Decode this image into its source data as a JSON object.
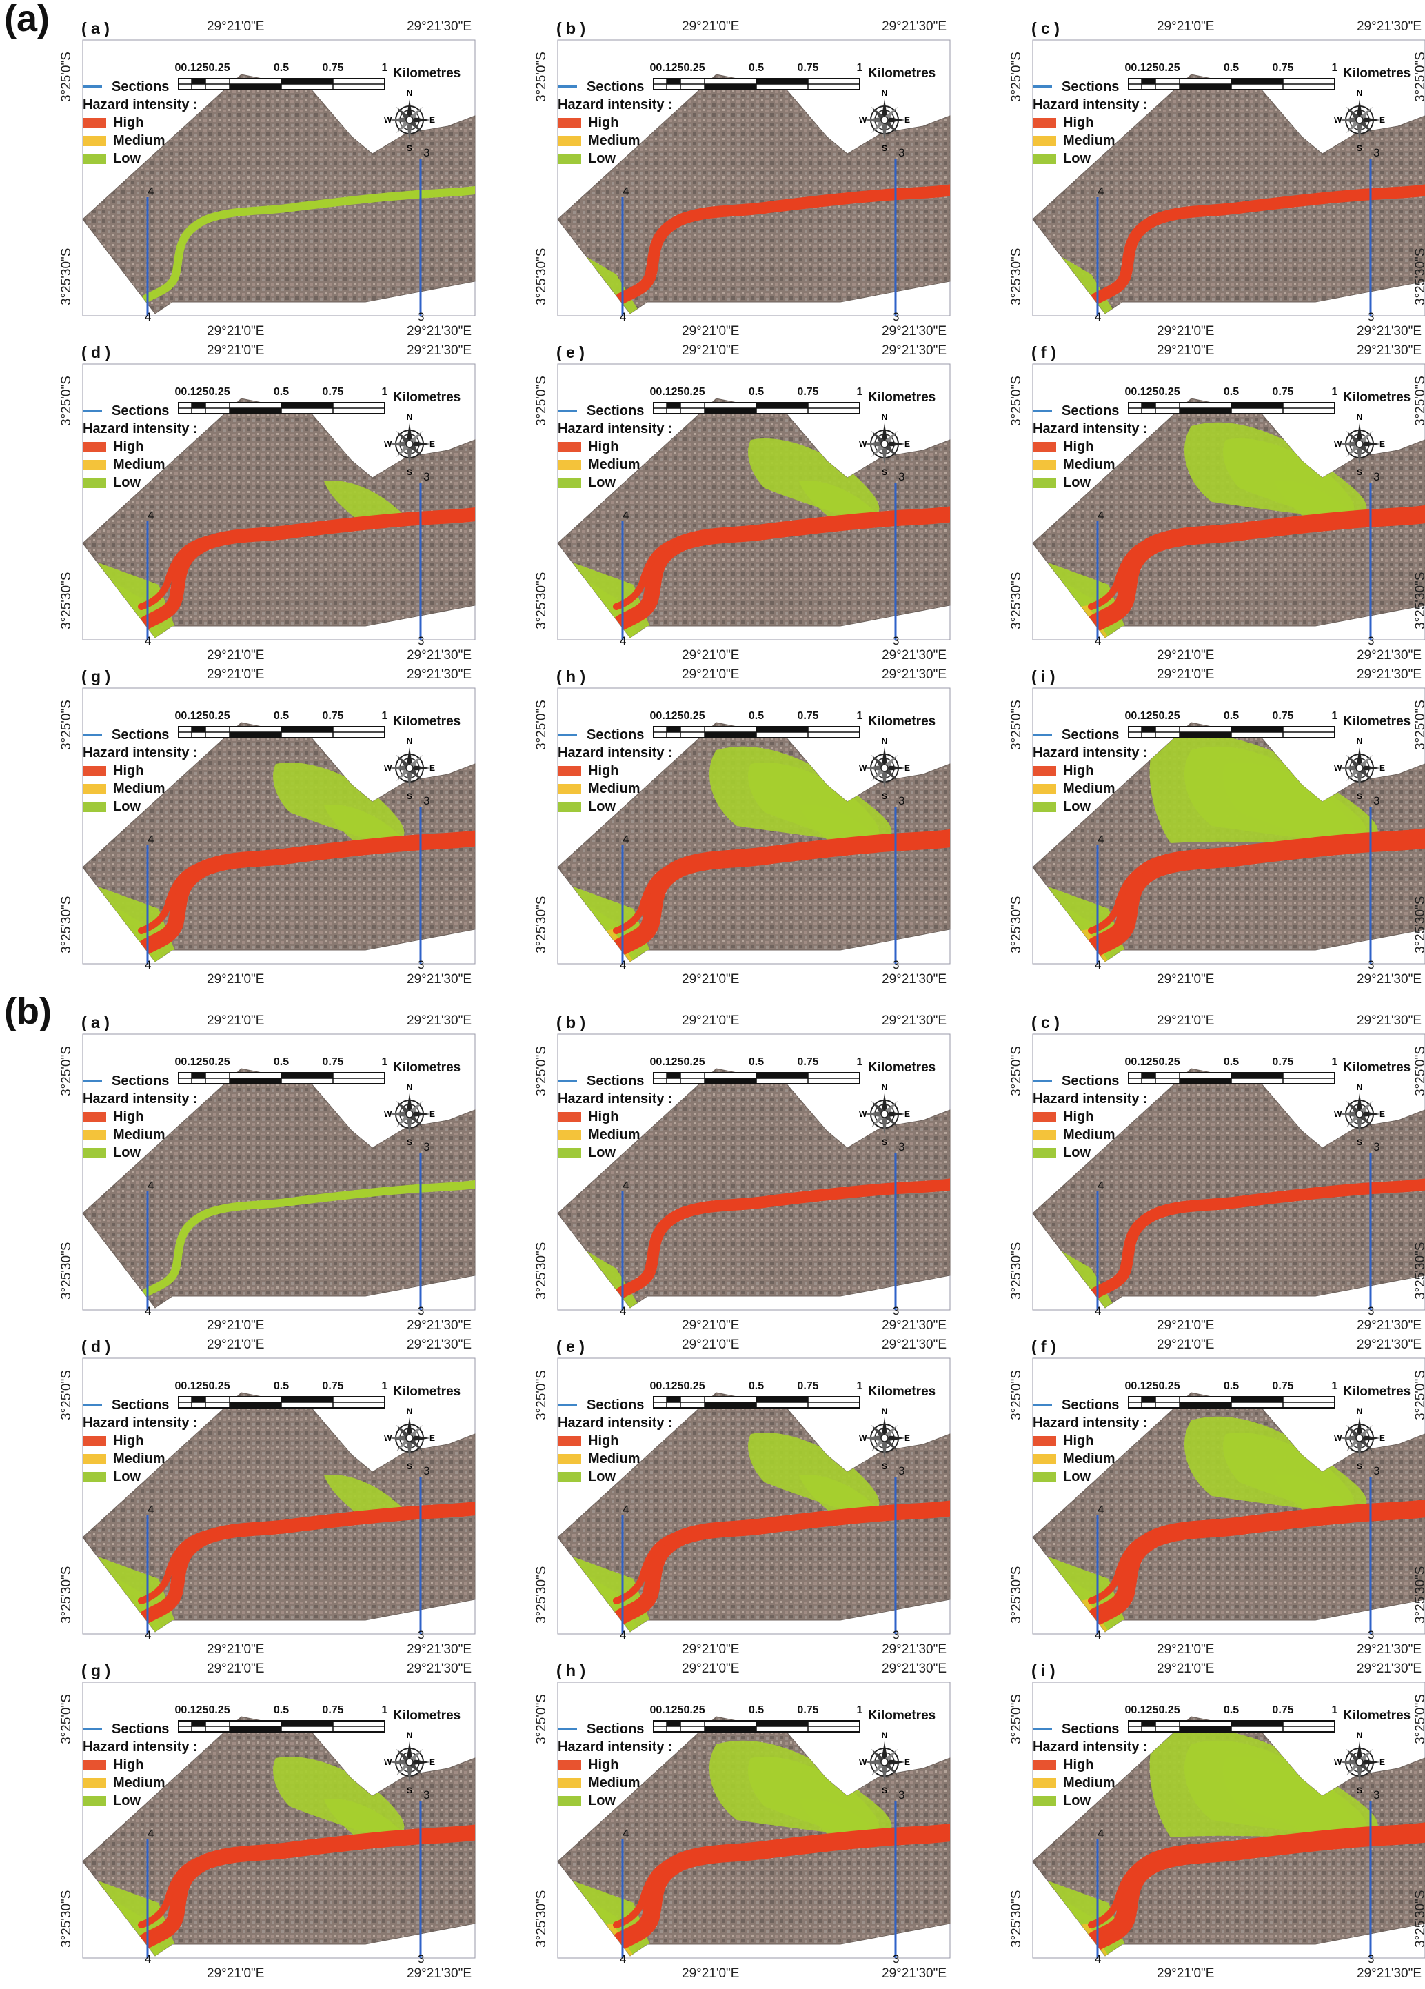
{
  "groups": [
    {
      "label": "(a)",
      "panels": [
        "( a )",
        "( b )",
        "( c )",
        "( d )",
        "( e )",
        "( f )",
        "( g )",
        "( h )",
        "( i )"
      ]
    },
    {
      "label": "(b)",
      "panels": [
        "( a )",
        "( b )",
        "( c )",
        "( d )",
        "( e )",
        "( f )",
        "( g )",
        "( h )",
        "( i )"
      ]
    }
  ],
  "coords": {
    "lon_left": "29°21'0\"E",
    "lon_right": "29°21'30\"E",
    "lat_top": "3°25'0\"S",
    "lat_bottom": "3°25'30\"S"
  },
  "scale": {
    "ticks": [
      "0",
      "0.1250.25",
      "0.5",
      "0.75",
      "1"
    ],
    "unit": "Kilometres"
  },
  "compass": {
    "n": "N",
    "s": "S",
    "e": "E",
    "w": "W"
  },
  "legend": {
    "sections": "Sections",
    "title": "Hazard intensity :",
    "items": [
      {
        "label": "High",
        "color": "#e8532f"
      },
      {
        "label": "Medium",
        "color": "#f4c33a"
      },
      {
        "label": "Low",
        "color": "#9fc93a"
      }
    ]
  },
  "section_labels": {
    "left": "4",
    "right": "3"
  },
  "colors": {
    "section_line": "#2f62c8",
    "imagery": "#8a7a72",
    "river_high": "#e8401f",
    "low": "#a6cf2e",
    "medium": "#f3bf2c"
  },
  "flood_extent_level": [
    0,
    1,
    1,
    2,
    3,
    4,
    3,
    4,
    5
  ]
}
